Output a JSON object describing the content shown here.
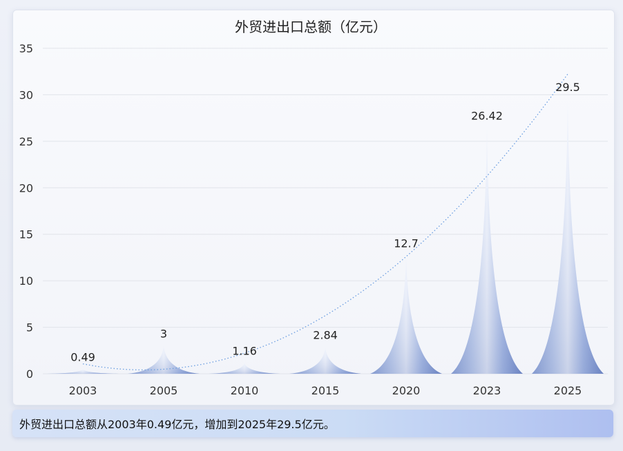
{
  "chart_data": {
    "type": "bar",
    "title": "外贸进出口总额（亿元）",
    "categories": [
      "2003",
      "2005",
      "2010",
      "2015",
      "2020",
      "2023",
      "2025"
    ],
    "values": [
      0.49,
      3,
      1.16,
      2.84,
      12.7,
      26.42,
      29.5
    ],
    "data_labels": [
      "0.49",
      "3",
      "1.16",
      "2.84",
      "12.7",
      "26.42",
      "29.5"
    ],
    "ylim": [
      0,
      35
    ],
    "yticks": [
      "0",
      "5",
      "10",
      "15",
      "20",
      "25",
      "30",
      "35"
    ],
    "ytick_values": [
      0,
      5,
      10,
      15,
      20,
      25,
      30,
      35
    ],
    "grid": true,
    "trendline": "dotted"
  },
  "caption": "外贸进出口总额从2003年0.49亿元，增加到2025年29.5亿元。",
  "colors": {
    "spike_light": "#e9eefa",
    "spike_mid": "#b3c5ea",
    "spike_dark": "#7b93cf",
    "trend": "#6a9de0",
    "grid": "#e1e4ea"
  }
}
